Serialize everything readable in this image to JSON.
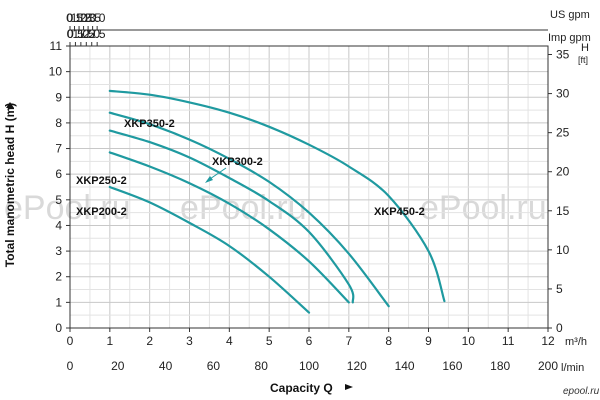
{
  "chart_data": {
    "type": "line",
    "xlabel": "Capacity Q",
    "ylabel": "Total manometric head H (m)",
    "xlim": [
      0,
      12
    ],
    "ylim": [
      0,
      11
    ],
    "x_unit": "m³/h",
    "grid": true,
    "x_ticks": [
      "0",
      "1",
      "2",
      "3",
      "4",
      "5",
      "6",
      "7",
      "8",
      "9",
      "10",
      "11",
      "12"
    ],
    "y_ticks": [
      "0",
      "1",
      "2",
      "3",
      "4",
      "5",
      "6",
      "7",
      "8",
      "9",
      "10",
      "11"
    ],
    "bottom_axis": {
      "unit": "l/min",
      "ticks": [
        "0",
        "20",
        "40",
        "60",
        "80",
        "100",
        "120",
        "140",
        "160",
        "180",
        "200"
      ]
    },
    "top_axes": [
      {
        "unit": "US gpm",
        "ticks": [
          "0",
          "0.5",
          "1.0",
          "1.5",
          "2.0",
          "2.5",
          "3.0"
        ]
      },
      {
        "unit": "Imp gpm",
        "ticks": [
          "0",
          "0.5",
          "1.0",
          "1.5",
          "2.0",
          "2.5"
        ]
      }
    ],
    "right_axis": {
      "unit_top": "H",
      "unit_bottom": "[ft]",
      "ticks": [
        "0",
        "5",
        "10",
        "15",
        "20",
        "25",
        "30",
        "35"
      ]
    },
    "series": [
      {
        "name": "XKP200-2",
        "x": [
          1,
          2,
          3,
          4,
          5,
          6
        ],
        "y": [
          5.5,
          4.9,
          4.1,
          3.2,
          2.0,
          0.6
        ]
      },
      {
        "name": "XKP250-2",
        "x": [
          1,
          2,
          3,
          4,
          5,
          6,
          7
        ],
        "y": [
          6.85,
          6.3,
          5.65,
          4.85,
          3.85,
          2.6,
          1.0
        ]
      },
      {
        "name": "XKP300-2",
        "x": [
          1,
          2,
          3,
          4,
          5,
          6,
          7,
          7.1
        ],
        "y": [
          7.7,
          7.25,
          6.65,
          5.85,
          4.95,
          3.75,
          1.7,
          1.0
        ]
      },
      {
        "name": "XKP350-2",
        "x": [
          1,
          2,
          3,
          4,
          5,
          6,
          7,
          8
        ],
        "y": [
          8.4,
          7.95,
          7.35,
          6.6,
          5.7,
          4.5,
          2.9,
          0.85
        ]
      },
      {
        "name": "XKP450-2",
        "x": [
          1,
          2,
          3,
          4,
          5,
          6,
          7,
          8,
          9,
          9.4
        ],
        "y": [
          9.25,
          9.1,
          8.8,
          8.4,
          7.85,
          7.15,
          6.3,
          5.15,
          3.0,
          1.05
        ]
      }
    ]
  },
  "branding": {
    "color": "#1f9aa0",
    "watermark": "ePool.ru",
    "logo_text": "epool.ru"
  }
}
